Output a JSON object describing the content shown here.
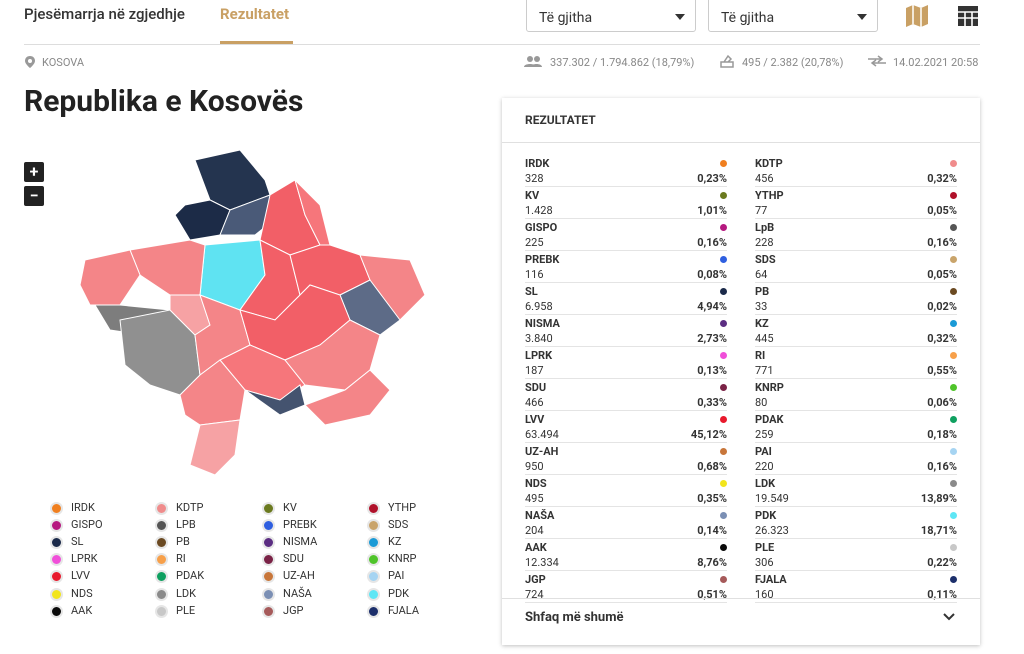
{
  "tabs": [
    "Pjesëmarrja në zgjedhje",
    "Rezultatet"
  ],
  "dropdowns": [
    "Të gjitha",
    "Të gjitha"
  ],
  "location": "KOSOVA",
  "stats": {
    "turnout": "337.302 / 1.794.862 (18,79%)",
    "stations": "495 / 2.382 (20,78%)",
    "updated": "14.02.2021 20:58"
  },
  "title": "Republika e Kosovës",
  "zoom": [
    "+",
    "−"
  ],
  "legend": [
    {
      "name": "IRDK",
      "color": "#f07f1f"
    },
    {
      "name": "KDTP",
      "color": "#f08c8c"
    },
    {
      "name": "KV",
      "color": "#6b7a1f"
    },
    {
      "name": "YTHP",
      "color": "#b0112a"
    },
    {
      "name": "GISPO",
      "color": "#b5187f"
    },
    {
      "name": "LPB",
      "color": "#555555"
    },
    {
      "name": "PREBK",
      "color": "#2f5fe0"
    },
    {
      "name": "SDS",
      "color": "#c9a46b"
    },
    {
      "name": "SL",
      "color": "#1b2a4a"
    },
    {
      "name": "PB",
      "color": "#6b4a22"
    },
    {
      "name": "NISMA",
      "color": "#5b2d82"
    },
    {
      "name": "KZ",
      "color": "#1a9ad6"
    },
    {
      "name": "LPRK",
      "color": "#f04fd9"
    },
    {
      "name": "RI",
      "color": "#f7a04a"
    },
    {
      "name": "SDU",
      "color": "#7a2246"
    },
    {
      "name": "KNRP",
      "color": "#4fc42a"
    },
    {
      "name": "LVV",
      "color": "#e8192c"
    },
    {
      "name": "PDAK",
      "color": "#0fa060"
    },
    {
      "name": "UZ-AH",
      "color": "#c8763a"
    },
    {
      "name": "PAI",
      "color": "#a6d4f2"
    },
    {
      "name": "NDS",
      "color": "#f2e51c"
    },
    {
      "name": "LDK",
      "color": "#8a8a8a"
    },
    {
      "name": "NAŠA",
      "color": "#7b8fb4"
    },
    {
      "name": "PDK",
      "color": "#5ee6f5"
    },
    {
      "name": "AAK",
      "color": "#0a0a0a"
    },
    {
      "name": "PLE",
      "color": "#c8c8c8"
    },
    {
      "name": "JGP",
      "color": "#a65a5a"
    },
    {
      "name": "FJALA",
      "color": "#1c2f6b"
    }
  ],
  "results": {
    "heading": "REZULTATET",
    "more": "Shfaq më shumë",
    "left": [
      {
        "name": "IRDK",
        "votes": "328",
        "pct": "0,23%",
        "color": "#f07f1f"
      },
      {
        "name": "KV",
        "votes": "1.428",
        "pct": "1,01%",
        "color": "#6b7a1f"
      },
      {
        "name": "GISPO",
        "votes": "225",
        "pct": "0,16%",
        "color": "#b5187f"
      },
      {
        "name": "PREBK",
        "votes": "116",
        "pct": "0,08%",
        "color": "#2f5fe0"
      },
      {
        "name": "SL",
        "votes": "6.958",
        "pct": "4,94%",
        "color": "#1b2a4a"
      },
      {
        "name": "NISMA",
        "votes": "3.840",
        "pct": "2,73%",
        "color": "#5b2d82"
      },
      {
        "name": "LPRK",
        "votes": "187",
        "pct": "0,13%",
        "color": "#f04fd9"
      },
      {
        "name": "SDU",
        "votes": "466",
        "pct": "0,33%",
        "color": "#7a2246"
      },
      {
        "name": "LVV",
        "votes": "63.494",
        "pct": "45,12%",
        "color": "#e8192c"
      },
      {
        "name": "UZ-AH",
        "votes": "950",
        "pct": "0,68%",
        "color": "#c8763a"
      },
      {
        "name": "NDS",
        "votes": "495",
        "pct": "0,35%",
        "color": "#f2e51c"
      },
      {
        "name": "NAŠA",
        "votes": "204",
        "pct": "0,14%",
        "color": "#7b8fb4"
      },
      {
        "name": "AAK",
        "votes": "12.334",
        "pct": "8,76%",
        "color": "#0a0a0a"
      },
      {
        "name": "JGP",
        "votes": "724",
        "pct": "0,51%",
        "color": "#a65a5a"
      }
    ],
    "right": [
      {
        "name": "KDTP",
        "votes": "456",
        "pct": "0,32%",
        "color": "#f08c8c"
      },
      {
        "name": "YTHP",
        "votes": "77",
        "pct": "0,05%",
        "color": "#b0112a"
      },
      {
        "name": "LpB",
        "votes": "228",
        "pct": "0,16%",
        "color": "#555555"
      },
      {
        "name": "SDS",
        "votes": "64",
        "pct": "0,05%",
        "color": "#c9a46b"
      },
      {
        "name": "PB",
        "votes": "33",
        "pct": "0,02%",
        "color": "#6b4a22"
      },
      {
        "name": "KZ",
        "votes": "445",
        "pct": "0,32%",
        "color": "#1a9ad6"
      },
      {
        "name": "RI",
        "votes": "771",
        "pct": "0,55%",
        "color": "#f7a04a"
      },
      {
        "name": "KNRP",
        "votes": "80",
        "pct": "0,06%",
        "color": "#4fc42a"
      },
      {
        "name": "PDAK",
        "votes": "259",
        "pct": "0,18%",
        "color": "#0fa060"
      },
      {
        "name": "PAI",
        "votes": "220",
        "pct": "0,16%",
        "color": "#a6d4f2"
      },
      {
        "name": "LDK",
        "votes": "19.549",
        "pct": "13,89%",
        "color": "#8a8a8a"
      },
      {
        "name": "PDK",
        "votes": "26.323",
        "pct": "18,71%",
        "color": "#5ee6f5"
      },
      {
        "name": "PLE",
        "votes": "306",
        "pct": "0,22%",
        "color": "#c8c8c8"
      },
      {
        "name": "FJALA",
        "votes": "160",
        "pct": "0,11%",
        "color": "#1c2f6b"
      }
    ]
  }
}
